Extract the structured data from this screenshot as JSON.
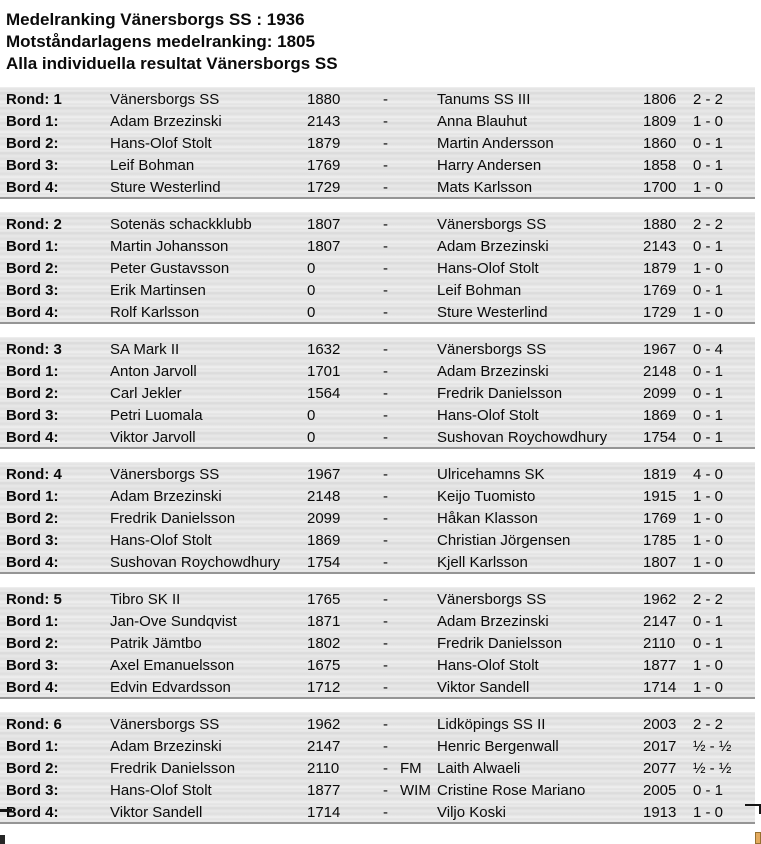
{
  "page_header": {
    "line1": "Medelranking Vänersborgs SS : 1936",
    "line2": "Motståndarlagens medelranking: 1805",
    "line3": "Alla individuella resultat Vänersborgs SS"
  },
  "labels": {
    "separator": "-"
  },
  "colors": {
    "row_texture_light": "#f0f0f0",
    "row_texture_dark": "#d9d9d9",
    "block_divider": "#959595",
    "text": "#0a0a0a",
    "handle_artifact": "#e3aa5e"
  },
  "rounds": [
    {
      "label": "Rond: 1",
      "home_team": "Vänersborgs SS",
      "home_rating": "1880",
      "away_team": "Tanums SS III",
      "away_rating": "1806",
      "score": "2 - 2",
      "boards": [
        {
          "label": "Bord 1:",
          "white_name": "Adam Brzezinski",
          "white_rating": "2143",
          "title": "",
          "black_name": "Anna Blauhut",
          "black_rating": "1809",
          "result": "1 - 0"
        },
        {
          "label": "Bord 2:",
          "white_name": "Hans-Olof Stolt",
          "white_rating": "1879",
          "title": "",
          "black_name": "Martin Andersson",
          "black_rating": "1860",
          "result": "0 - 1"
        },
        {
          "label": "Bord 3:",
          "white_name": "Leif Bohman",
          "white_rating": "1769",
          "title": "",
          "black_name": "Harry Andersen",
          "black_rating": "1858",
          "result": "0 - 1"
        },
        {
          "label": "Bord 4:",
          "white_name": "Sture Westerlind",
          "white_rating": "1729",
          "title": "",
          "black_name": "Mats Karlsson",
          "black_rating": "1700",
          "result": "1 - 0"
        }
      ]
    },
    {
      "label": "Rond: 2",
      "home_team": "Sotenäs schackklubb",
      "home_rating": "1807",
      "away_team": "Vänersborgs SS",
      "away_rating": "1880",
      "score": "2 - 2",
      "boards": [
        {
          "label": "Bord 1:",
          "white_name": "Martin Johansson",
          "white_rating": "1807",
          "title": "",
          "black_name": "Adam Brzezinski",
          "black_rating": "2143",
          "result": "0 - 1"
        },
        {
          "label": "Bord 2:",
          "white_name": "Peter Gustavsson",
          "white_rating": "0",
          "title": "",
          "black_name": "Hans-Olof Stolt",
          "black_rating": "1879",
          "result": "1 - 0"
        },
        {
          "label": "Bord 3:",
          "white_name": "Erik Martinsen",
          "white_rating": "0",
          "title": "",
          "black_name": "Leif Bohman",
          "black_rating": "1769",
          "result": "0 - 1"
        },
        {
          "label": "Bord 4:",
          "white_name": "Rolf Karlsson",
          "white_rating": "0",
          "title": "",
          "black_name": "Sture Westerlind",
          "black_rating": "1729",
          "result": "1 - 0"
        }
      ]
    },
    {
      "label": "Rond: 3",
      "home_team": "SA Mark II",
      "home_rating": "1632",
      "away_team": "Vänersborgs SS",
      "away_rating": "1967",
      "score": "0 - 4",
      "boards": [
        {
          "label": "Bord 1:",
          "white_name": "Anton Jarvoll",
          "white_rating": "1701",
          "title": "",
          "black_name": "Adam Brzezinski",
          "black_rating": "2148",
          "result": "0 - 1"
        },
        {
          "label": "Bord 2:",
          "white_name": "Carl Jekler",
          "white_rating": "1564",
          "title": "",
          "black_name": "Fredrik Danielsson",
          "black_rating": "2099",
          "result": "0 - 1"
        },
        {
          "label": "Bord 3:",
          "white_name": "Petri Luomala",
          "white_rating": "0",
          "title": "",
          "black_name": "Hans-Olof Stolt",
          "black_rating": "1869",
          "result": "0 - 1"
        },
        {
          "label": "Bord 4:",
          "white_name": "Viktor Jarvoll",
          "white_rating": "0",
          "title": "",
          "black_name": "Sushovan Roychowdhury",
          "black_rating": "1754",
          "result": "0 - 1"
        }
      ]
    },
    {
      "label": "Rond: 4",
      "home_team": "Vänersborgs SS",
      "home_rating": "1967",
      "away_team": "Ulricehamns SK",
      "away_rating": "1819",
      "score": "4 - 0",
      "boards": [
        {
          "label": "Bord 1:",
          "white_name": "Adam Brzezinski",
          "white_rating": "2148",
          "title": "",
          "black_name": "Keijo Tuomisto",
          "black_rating": "1915",
          "result": "1 - 0"
        },
        {
          "label": "Bord 2:",
          "white_name": "Fredrik Danielsson",
          "white_rating": "2099",
          "title": "",
          "black_name": "Håkan Klasson",
          "black_rating": "1769",
          "result": "1 - 0"
        },
        {
          "label": "Bord 3:",
          "white_name": "Hans-Olof Stolt",
          "white_rating": "1869",
          "title": "",
          "black_name": "Christian Jörgensen",
          "black_rating": "1785",
          "result": "1 - 0"
        },
        {
          "label": "Bord 4:",
          "white_name": "Sushovan Roychowdhury",
          "white_rating": "1754",
          "title": "",
          "black_name": "Kjell Karlsson",
          "black_rating": "1807",
          "result": "1 - 0"
        }
      ]
    },
    {
      "label": "Rond: 5",
      "home_team": "Tibro SK II",
      "home_rating": "1765",
      "away_team": "Vänersborgs SS",
      "away_rating": "1962",
      "score": "2 - 2",
      "boards": [
        {
          "label": "Bord 1:",
          "white_name": "Jan-Ove Sundqvist",
          "white_rating": "1871",
          "title": "",
          "black_name": "Adam Brzezinski",
          "black_rating": "2147",
          "result": "0 - 1"
        },
        {
          "label": "Bord 2:",
          "white_name": "Patrik Jämtbo",
          "white_rating": "1802",
          "title": "",
          "black_name": "Fredrik Danielsson",
          "black_rating": "2110",
          "result": "0 - 1"
        },
        {
          "label": "Bord 3:",
          "white_name": "Axel Emanuelsson",
          "white_rating": "1675",
          "title": "",
          "black_name": "Hans-Olof Stolt",
          "black_rating": "1877",
          "result": "1 - 0"
        },
        {
          "label": "Bord 4:",
          "white_name": "Edvin Edvardsson",
          "white_rating": "1712",
          "title": "",
          "black_name": "Viktor Sandell",
          "black_rating": "1714",
          "result": "1 - 0"
        }
      ]
    },
    {
      "label": "Rond: 6",
      "home_team": "Vänersborgs SS",
      "home_rating": "1962",
      "away_team": "Lidköpings SS II",
      "away_rating": "2003",
      "score": "2 - 2",
      "boards": [
        {
          "label": "Bord 1:",
          "white_name": "Adam Brzezinski",
          "white_rating": "2147",
          "title": "",
          "black_name": "Henric Bergenwall",
          "black_rating": "2017",
          "result": "½ - ½"
        },
        {
          "label": "Bord 2:",
          "white_name": "Fredrik Danielsson",
          "white_rating": "2110",
          "title": "FM",
          "black_name": "Laith Alwaeli",
          "black_rating": "2077",
          "result": "½ - ½"
        },
        {
          "label": "Bord 3:",
          "white_name": "Hans-Olof Stolt",
          "white_rating": "1877",
          "title": "WIM",
          "black_name": "Cristine Rose Mariano",
          "black_rating": "2005",
          "result": "0 - 1"
        },
        {
          "label": "Bord 4:",
          "white_name": "Viktor Sandell",
          "white_rating": "1714",
          "title": "",
          "black_name": "Viljo Koski",
          "black_rating": "1913",
          "result": "1 - 0"
        }
      ]
    }
  ]
}
